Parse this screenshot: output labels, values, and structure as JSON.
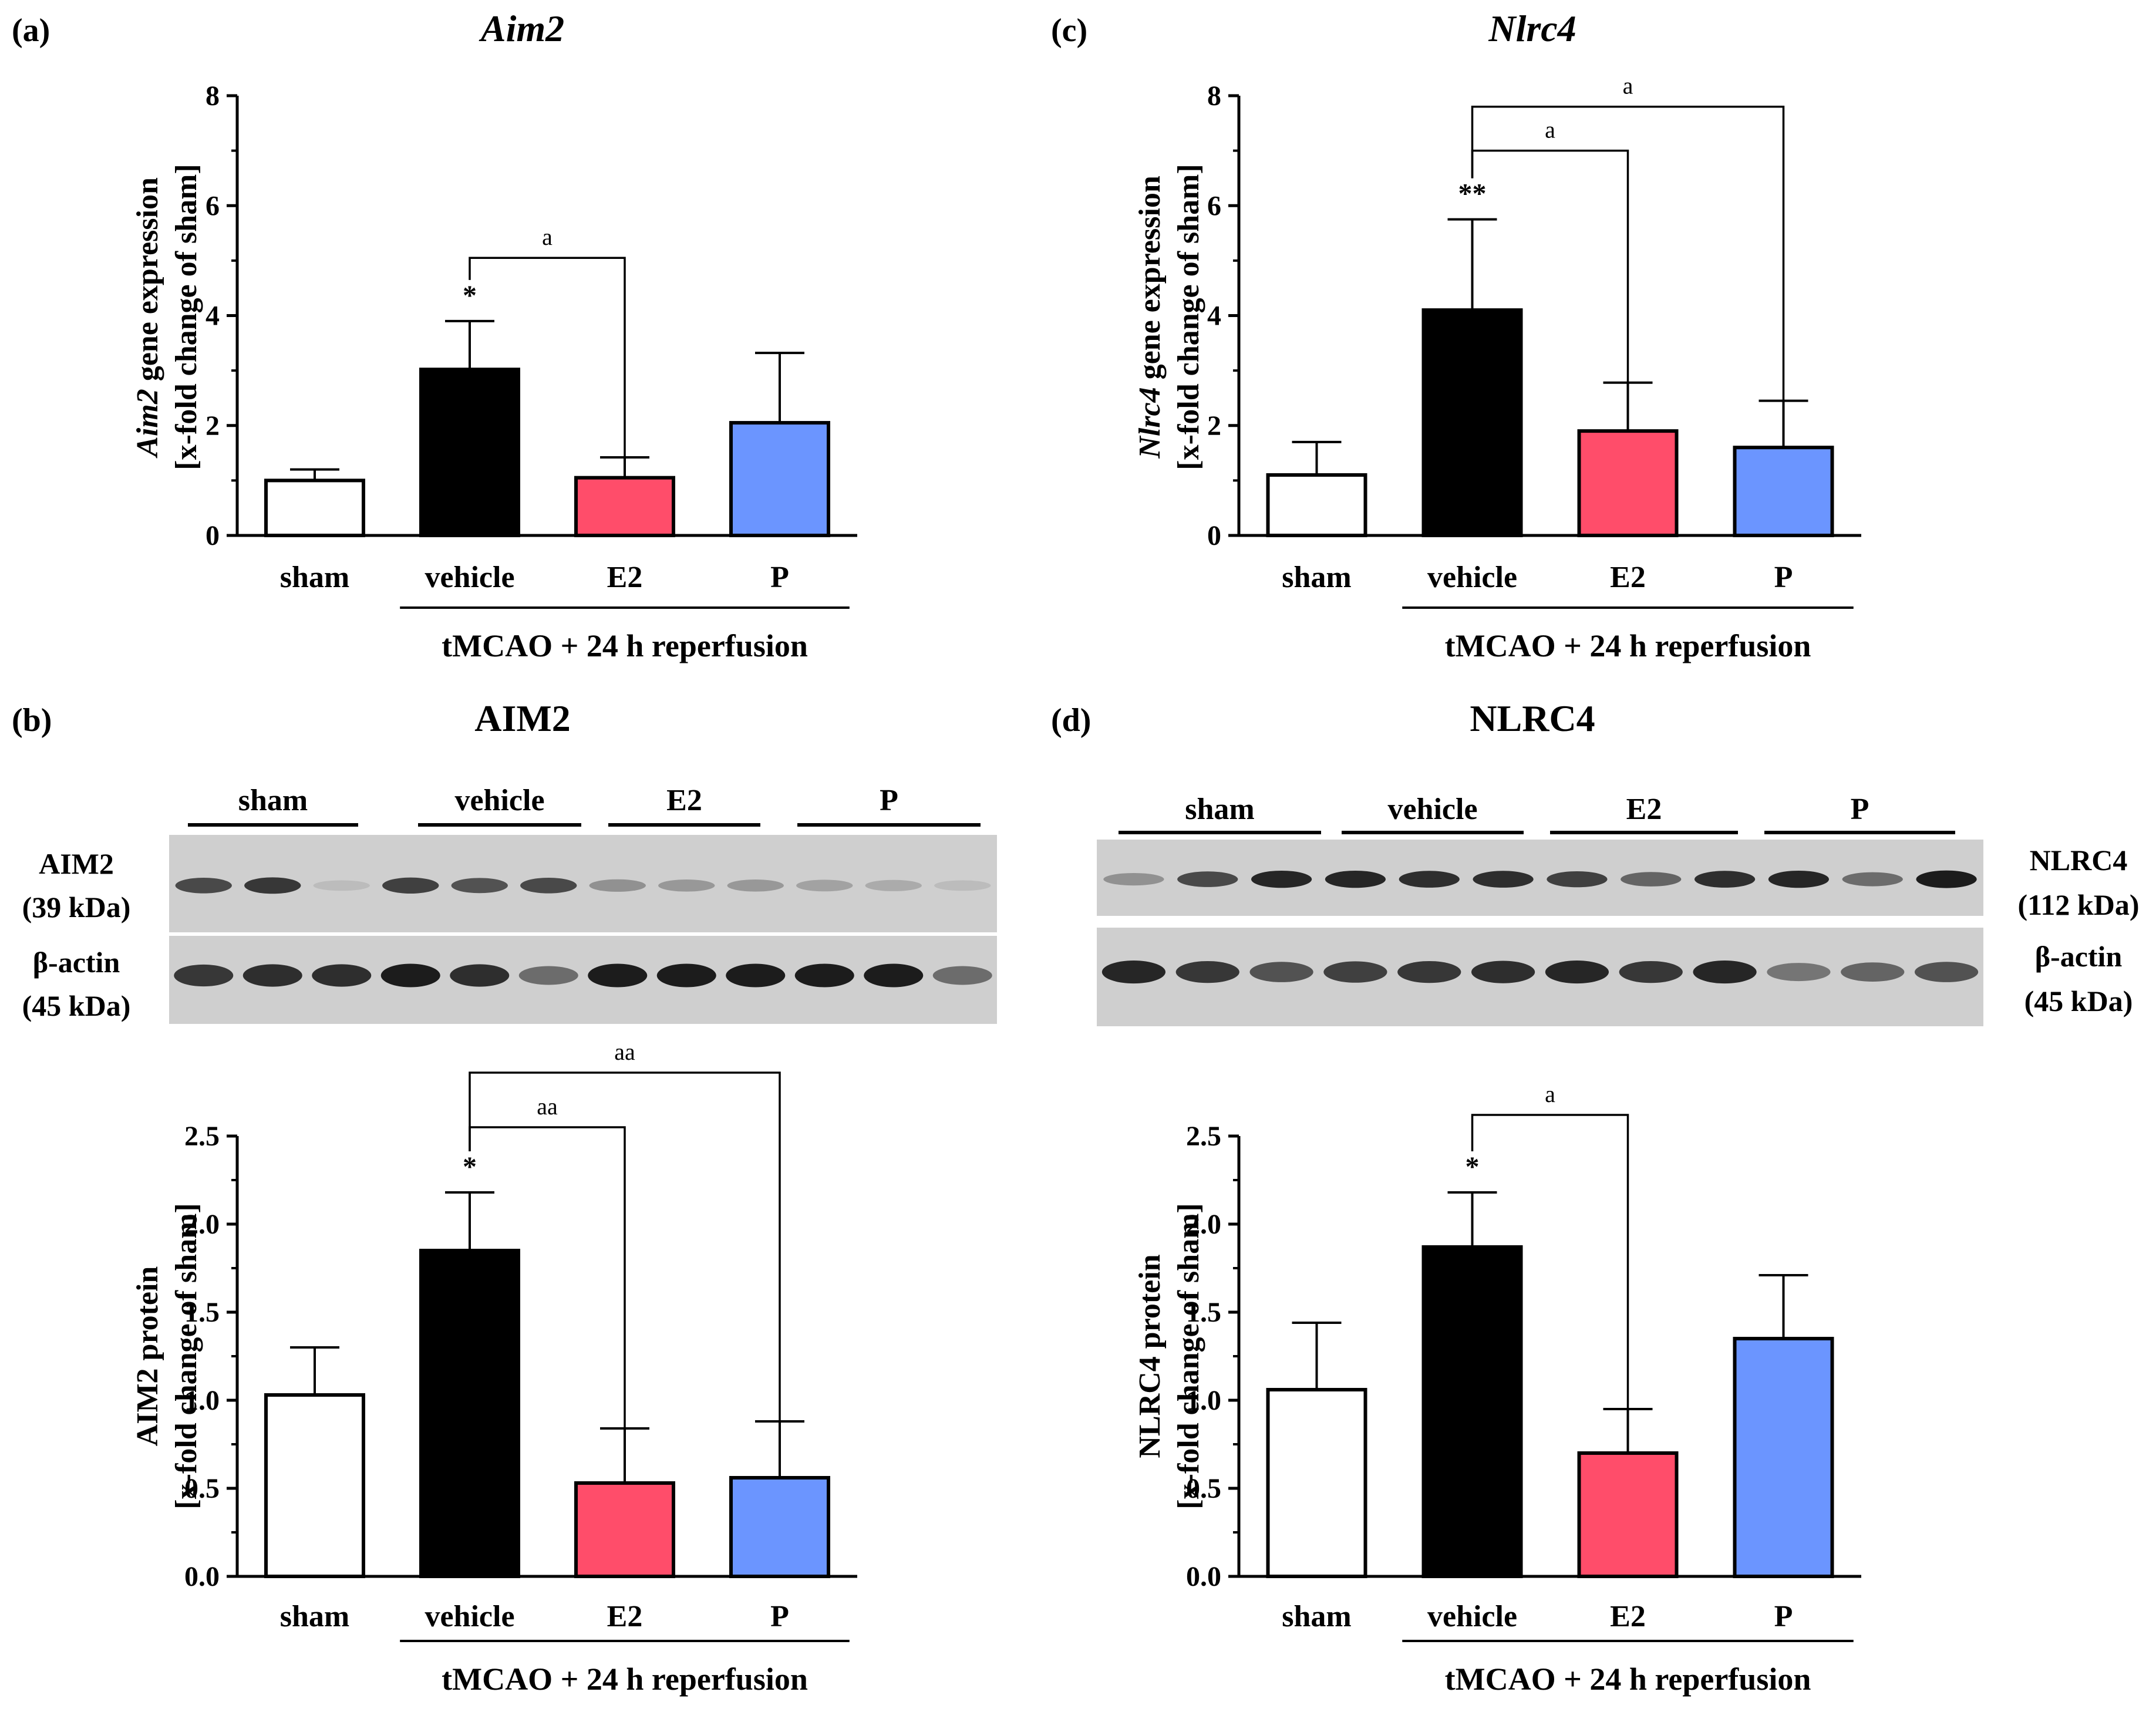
{
  "colors": {
    "sham": "#ffffff",
    "vehicle": "#000000",
    "E2": "#ff4d6a",
    "P": "#6b95ff",
    "blot_bg": "#cfcfcf",
    "band": "#1c1c1c"
  },
  "group_label": "tMCAO + 24 h reperfusion",
  "chart_data": [
    {
      "id": "a",
      "type": "bar",
      "panel_letter": "(a)",
      "title": "Aim2",
      "title_italic": true,
      "ylabel_line1_italic": "Aim2",
      "ylabel_line1_rest": " gene expression",
      "ylabel_line2": "[x-fold change of sham]",
      "categories": [
        "sham",
        "vehicle",
        "E2",
        "P"
      ],
      "values": [
        1.0,
        3.02,
        1.05,
        2.05
      ],
      "errors": [
        0.2,
        0.88,
        0.37,
        1.27
      ],
      "ylim": [
        0,
        8
      ],
      "yticks": [
        0,
        2,
        4,
        6,
        8
      ],
      "ytick_labels": [
        "0",
        "2",
        "4",
        "6",
        "8"
      ],
      "annotations": [
        {
          "type": "star",
          "bar": 1,
          "text": "*"
        },
        {
          "type": "bracket",
          "from": 1,
          "to": 2,
          "y": 5.05,
          "text": "a"
        }
      ]
    },
    {
      "id": "c",
      "type": "bar",
      "panel_letter": "(c)",
      "title": "Nlrc4",
      "title_italic": true,
      "ylabel_line1_italic": "Nlrc4",
      "ylabel_line1_rest": " gene expression",
      "ylabel_line2": "[x-fold change of sham]",
      "categories": [
        "sham",
        "vehicle",
        "E2",
        "P"
      ],
      "values": [
        1.1,
        4.1,
        1.9,
        1.6
      ],
      "errors": [
        0.6,
        1.65,
        0.88,
        0.85
      ],
      "ylim": [
        0,
        8
      ],
      "yticks": [
        0,
        2,
        4,
        6,
        8
      ],
      "ytick_labels": [
        "0",
        "2",
        "4",
        "6",
        "8"
      ],
      "annotations": [
        {
          "type": "star",
          "bar": 1,
          "text": "**"
        },
        {
          "type": "bracket",
          "from": 1,
          "to": 2,
          "y": 7.0,
          "text": "a"
        },
        {
          "type": "bracket",
          "from": 1,
          "to": 3,
          "y": 7.8,
          "text": "a"
        }
      ]
    },
    {
      "id": "b",
      "type": "bar",
      "panel_letter": "(b)",
      "title": "AIM2",
      "title_italic": false,
      "ylabel_line1_italic": "",
      "ylabel_line1_rest": "AIM2 protein",
      "ylabel_line2": "[x-fold change of sham]",
      "categories": [
        "sham",
        "vehicle",
        "E2",
        "P"
      ],
      "values": [
        1.03,
        1.85,
        0.53,
        0.56
      ],
      "errors": [
        0.27,
        0.33,
        0.31,
        0.32
      ],
      "ylim": [
        0,
        2.5
      ],
      "yticks": [
        0,
        0.5,
        1.0,
        1.5,
        2.0,
        2.5
      ],
      "ytick_labels": [
        "0.0",
        "0.5",
        "1.0",
        "1.5",
        "2.0",
        "2.5"
      ],
      "annotations": [
        {
          "type": "star",
          "bar": 1,
          "text": "*"
        },
        {
          "type": "bracket",
          "from": 1,
          "to": 2,
          "y": 2.55,
          "text": "aa"
        },
        {
          "type": "bracket",
          "from": 1,
          "to": 3,
          "y": 2.86,
          "text": "aa"
        }
      ]
    },
    {
      "id": "d",
      "type": "bar",
      "panel_letter": "(d)",
      "title": "NLRC4",
      "title_italic": false,
      "ylabel_line1_italic": "",
      "ylabel_line1_rest": "NLRC4 protein",
      "ylabel_line2": "[x-fold change of sham]",
      "categories": [
        "sham",
        "vehicle",
        "E2",
        "P"
      ],
      "values": [
        1.06,
        1.87,
        0.7,
        1.35
      ],
      "errors": [
        0.38,
        0.31,
        0.25,
        0.36
      ],
      "ylim": [
        0,
        2.5
      ],
      "yticks": [
        0,
        0.5,
        1.0,
        1.5,
        2.0,
        2.5
      ],
      "ytick_labels": [
        "0.0",
        "0.5",
        "1.0",
        "1.5",
        "2.0",
        "2.5"
      ],
      "annotations": [
        {
          "type": "star",
          "bar": 1,
          "text": "*"
        },
        {
          "type": "bracket",
          "from": 1,
          "to": 2,
          "y": 2.62,
          "text": "a"
        }
      ]
    }
  ],
  "blots": [
    {
      "id": "b",
      "groups": [
        "sham",
        "vehicle",
        "E2",
        "P"
      ],
      "left_labels": [
        "AIM2",
        "(39 kDa)",
        "β-actin",
        "(45 kDa)"
      ],
      "target_band_intensity": [
        0.75,
        0.85,
        0.1,
        0.8,
        0.7,
        0.75,
        0.35,
        0.3,
        0.3,
        0.25,
        0.2,
        0.1
      ],
      "actin_band_intensity": [
        0.85,
        0.9,
        0.9,
        1.0,
        0.9,
        0.55,
        1.0,
        1.0,
        1.0,
        1.0,
        1.0,
        0.55
      ]
    },
    {
      "id": "d",
      "groups": [
        "sham",
        "vehicle",
        "E2",
        "P"
      ],
      "right_labels": [
        "NLRC4",
        "(112 kDa)",
        "β-actin",
        "(45 kDa)"
      ],
      "target_band_intensity": [
        0.35,
        0.75,
        0.95,
        0.95,
        0.9,
        0.9,
        0.8,
        0.6,
        0.9,
        0.95,
        0.55,
        1.0
      ],
      "actin_band_intensity": [
        0.95,
        0.85,
        0.7,
        0.8,
        0.85,
        0.9,
        0.95,
        0.85,
        0.95,
        0.5,
        0.6,
        0.7
      ]
    }
  ]
}
